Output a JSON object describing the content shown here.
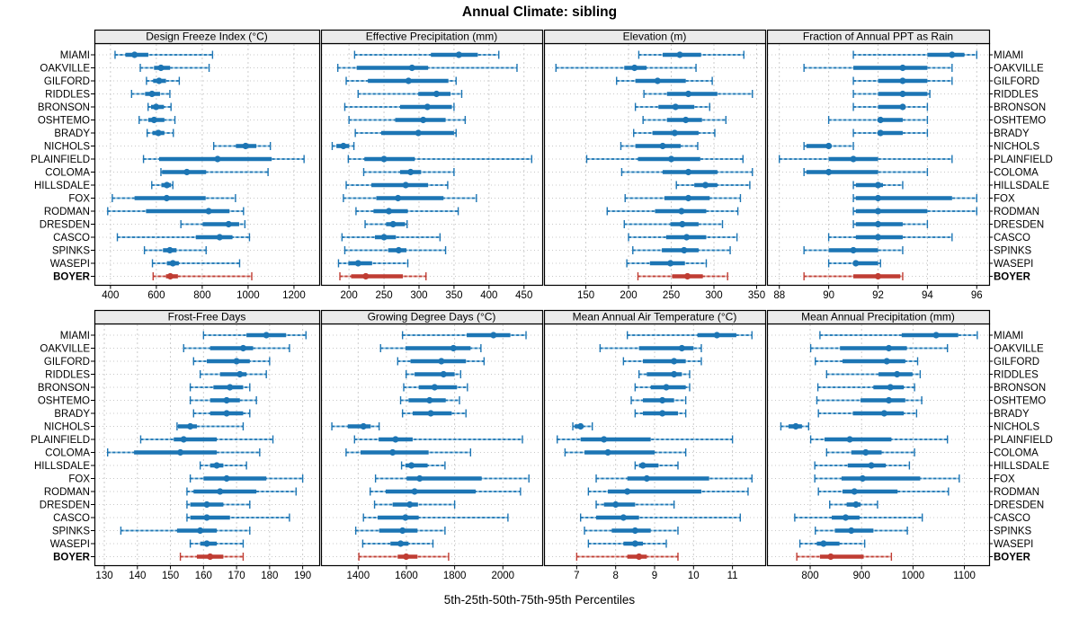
{
  "title": "Annual Climate: sibling",
  "caption": "5th-25th-50th-75th-95th Percentiles",
  "colors": {
    "blue": "#1c75b4",
    "blue_light": "#92c1dd",
    "red": "#c03d33",
    "red_light": "#dd9f97",
    "strip_bg": "#ebebeb",
    "grid": "#cccccc",
    "row_dots": "#c8c8c8",
    "border": "#000000"
  },
  "chart_data": {
    "type": "dotplot-percentiles",
    "percentile_levels": [
      5,
      25,
      50,
      75,
      95
    ],
    "legend_note": "5th-25th-50th-75th-95th Percentiles",
    "highlight_site": "BOYER",
    "sites": [
      "MIAMI",
      "OAKVILLE",
      "GILFORD",
      "RIDDLES",
      "BRONSON",
      "OSHTEMO",
      "BRADY",
      "NICHOLS",
      "PLAINFIELD",
      "COLOMA",
      "HILLSDALE",
      "FOX",
      "RODMAN",
      "DRESDEN",
      "CASCO",
      "SPINKS",
      "WASEPI",
      "BOYER"
    ],
    "panels": [
      {
        "title": "Design Freeze Index (°C)",
        "ticks": [
          400,
          600,
          800,
          1000,
          1200
        ],
        "xlim": [
          330,
          1310
        ],
        "values": [
          [
            420,
            465,
            505,
            565,
            845
          ],
          [
            530,
            590,
            620,
            660,
            830
          ],
          [
            557,
            586,
            612,
            642,
            700
          ],
          [
            492,
            551,
            581,
            616,
            659
          ],
          [
            564,
            577,
            599,
            633,
            664
          ],
          [
            525,
            565,
            590,
            635,
            681
          ],
          [
            560,
            583,
            609,
            635,
            674
          ],
          [
            850,
            947,
            989,
            1036,
            1097
          ],
          [
            544,
            612,
            867,
            1103,
            1244
          ],
          [
            620,
            625,
            733,
            817,
            1087
          ],
          [
            580,
            622,
            646,
            664,
            672
          ],
          [
            408,
            505,
            645,
            815,
            945
          ],
          [
            388,
            555,
            828,
            919,
            980
          ],
          [
            707,
            802,
            915,
            961,
            986
          ],
          [
            430,
            772,
            876,
            932,
            1006
          ],
          [
            548,
            629,
            659,
            688,
            817
          ],
          [
            583,
            646,
            672,
            698,
            963
          ],
          [
            586,
            642,
            661,
            694,
            1016
          ]
        ]
      },
      {
        "title": "Effective Precipitation (mm)",
        "ticks": [
          200,
          250,
          300,
          350,
          400,
          450
        ],
        "xlim": [
          160,
          476
        ],
        "values": [
          [
            208,
            317,
            357,
            384,
            414
          ],
          [
            184,
            211,
            290,
            313,
            440
          ],
          [
            196,
            227,
            285,
            342,
            353
          ],
          [
            213,
            299,
            325,
            345,
            361
          ],
          [
            194,
            273,
            312,
            347,
            350
          ],
          [
            200,
            266,
            306,
            338,
            366
          ],
          [
            209,
            246,
            299,
            350,
            353
          ],
          [
            176,
            182,
            192,
            200,
            207
          ],
          [
            199,
            222,
            250,
            294,
            461
          ],
          [
            221,
            273,
            288,
            303,
            350
          ],
          [
            196,
            232,
            281,
            313,
            341
          ],
          [
            192,
            239,
            270,
            335,
            382
          ],
          [
            210,
            235,
            257,
            284,
            356
          ],
          [
            223,
            253,
            263,
            280,
            283
          ],
          [
            190,
            237,
            250,
            267,
            330
          ],
          [
            194,
            256,
            271,
            282,
            338
          ],
          [
            185,
            199,
            213,
            233,
            284
          ],
          [
            187,
            203,
            224,
            277,
            310
          ]
        ]
      },
      {
        "title": "Elevation (m)",
        "ticks": [
          150,
          200,
          250,
          300,
          350
        ],
        "xlim": [
          101,
          360
        ],
        "values": [
          [
            212,
            240,
            260,
            285,
            335
          ],
          [
            115,
            195,
            207,
            221,
            279
          ],
          [
            186,
            208,
            234,
            267,
            298
          ],
          [
            218,
            245,
            270,
            304,
            345
          ],
          [
            208,
            235,
            255,
            277,
            295
          ],
          [
            217,
            245,
            267,
            286,
            314
          ],
          [
            206,
            228,
            254,
            282,
            301
          ],
          [
            191,
            208,
            240,
            261,
            281
          ],
          [
            151,
            211,
            250,
            284,
            334
          ],
          [
            192,
            240,
            270,
            304,
            345
          ],
          [
            256,
            277,
            290,
            304,
            342
          ],
          [
            196,
            242,
            270,
            295,
            331
          ],
          [
            175,
            231,
            262,
            291,
            328
          ],
          [
            195,
            249,
            263,
            282,
            310
          ],
          [
            200,
            244,
            268,
            291,
            327
          ],
          [
            205,
            239,
            265,
            282,
            319
          ],
          [
            198,
            225,
            249,
            266,
            291
          ],
          [
            211,
            251,
            269,
            287,
            316
          ]
        ]
      },
      {
        "title": "Fraction of Annual PPT as Rain",
        "ticks": [
          88,
          90,
          92,
          94,
          96
        ],
        "xlim": [
          87.5,
          96.5
        ],
        "values": [
          [
            91,
            94,
            95,
            95.5,
            96
          ],
          [
            89,
            91,
            93,
            94,
            95
          ],
          [
            91,
            92,
            93,
            94,
            95
          ],
          [
            91,
            92,
            93,
            94,
            94.1
          ],
          [
            91,
            92,
            93,
            93.1,
            94
          ],
          [
            90,
            92,
            92.1,
            93,
            94
          ],
          [
            91,
            92,
            92.1,
            93,
            94
          ],
          [
            89,
            89.1,
            90,
            90.1,
            91
          ],
          [
            88,
            90,
            91,
            92,
            95
          ],
          [
            89,
            89.1,
            90,
            92,
            94
          ],
          [
            91,
            91.1,
            92,
            92.2,
            93
          ],
          [
            91,
            91.1,
            92,
            95,
            96
          ],
          [
            91,
            91.1,
            92,
            94,
            96
          ],
          [
            91,
            91.1,
            92,
            93,
            94
          ],
          [
            90,
            91.1,
            92,
            93,
            95
          ],
          [
            89,
            90,
            91,
            92,
            93
          ],
          [
            90,
            91,
            91.1,
            92,
            92.1
          ],
          [
            89,
            91,
            92,
            92.9,
            93
          ]
        ]
      },
      {
        "title": "Frost-Free Days",
        "ticks": [
          130,
          140,
          150,
          160,
          170,
          180,
          190
        ],
        "xlim": [
          127,
          195
        ],
        "values": [
          [
            160,
            173,
            179,
            185,
            191
          ],
          [
            154,
            162,
            172,
            175,
            186
          ],
          [
            157,
            161,
            170,
            174,
            180
          ],
          [
            159,
            165,
            171,
            173,
            179
          ],
          [
            156,
            163,
            168,
            172,
            174
          ],
          [
            156,
            162,
            167,
            171,
            176
          ],
          [
            157,
            162,
            167,
            172,
            174
          ],
          [
            152,
            152.3,
            156,
            158,
            172
          ],
          [
            141,
            151,
            154,
            164,
            181
          ],
          [
            131,
            139,
            153,
            164,
            177
          ],
          [
            159,
            162,
            164,
            166,
            173
          ],
          [
            156,
            160,
            167,
            179,
            190
          ],
          [
            155,
            157,
            165,
            176,
            188
          ],
          [
            155,
            156,
            161,
            166,
            174
          ],
          [
            155,
            156,
            161,
            168,
            186
          ],
          [
            135,
            152,
            159,
            164,
            174
          ],
          [
            156,
            159,
            161,
            164,
            172
          ],
          [
            153,
            158,
            162,
            166,
            172
          ]
        ]
      },
      {
        "title": "Growing Degree Days (°C)",
        "ticks": [
          1400,
          1600,
          1800,
          2000
        ],
        "xlim": [
          1246,
          2163
        ],
        "values": [
          [
            1584,
            1850,
            1961,
            2031,
            2096
          ],
          [
            1493,
            1596,
            1795,
            1866,
            1909
          ],
          [
            1564,
            1617,
            1745,
            1847,
            1922
          ],
          [
            1599,
            1634,
            1754,
            1800,
            1825
          ],
          [
            1589,
            1651,
            1717,
            1810,
            1853
          ],
          [
            1576,
            1609,
            1696,
            1763,
            1820
          ],
          [
            1584,
            1626,
            1701,
            1788,
            1847
          ],
          [
            1291,
            1357,
            1422,
            1452,
            1487
          ],
          [
            1385,
            1485,
            1555,
            1626,
            2081
          ],
          [
            1350,
            1410,
            1543,
            1692,
            1866
          ],
          [
            1580,
            1596,
            1621,
            1688,
            1760
          ],
          [
            1472,
            1601,
            1655,
            1912,
            2108
          ],
          [
            1450,
            1514,
            1634,
            1887,
            2073
          ],
          [
            1468,
            1543,
            1614,
            1648,
            1800
          ],
          [
            1422,
            1481,
            1596,
            1651,
            2021
          ],
          [
            1390,
            1487,
            1584,
            1646,
            1760
          ],
          [
            1419,
            1534,
            1576,
            1609,
            1710
          ],
          [
            1403,
            1564,
            1599,
            1646,
            1775
          ]
        ]
      },
      {
        "title": "Mean Annual Air Temperature (°C)",
        "ticks": [
          7,
          8,
          9,
          10,
          11
        ],
        "xlim": [
          6.16,
          11.84
        ],
        "values": [
          [
            8.3,
            10.1,
            10.6,
            11.1,
            11.5
          ],
          [
            7.6,
            8.6,
            9.7,
            10.0,
            10.2
          ],
          [
            8.2,
            8.7,
            9.5,
            9.8,
            10.2
          ],
          [
            8.6,
            8.8,
            9.5,
            9.7,
            9.9
          ],
          [
            8.5,
            8.9,
            9.3,
            9.8,
            9.9
          ],
          [
            8.4,
            8.7,
            9.2,
            9.5,
            9.8
          ],
          [
            8.5,
            8.7,
            9.2,
            9.6,
            9.8
          ],
          [
            6.9,
            6.95,
            7.1,
            7.15,
            7.4
          ],
          [
            6.5,
            7.1,
            7.7,
            8.9,
            11.0
          ],
          [
            6.7,
            7.2,
            7.8,
            9.0,
            9.8
          ],
          [
            8.5,
            8.6,
            8.7,
            9.1,
            9.6
          ],
          [
            7.5,
            8.3,
            8.8,
            10.4,
            11.5
          ],
          [
            7.3,
            7.8,
            8.3,
            10.2,
            11.4
          ],
          [
            7.5,
            7.7,
            8.0,
            8.5,
            9.5
          ],
          [
            7.1,
            7.5,
            8.2,
            8.6,
            11.2
          ],
          [
            7.2,
            7.9,
            8.5,
            8.9,
            9.6
          ],
          [
            7.3,
            8.2,
            8.5,
            8.7,
            9.3
          ],
          [
            7.0,
            8.3,
            8.6,
            8.8,
            9.6
          ]
        ]
      },
      {
        "title": "Mean Annual Precipitation (mm)",
        "ticks": [
          800,
          900,
          1000,
          1100
        ],
        "xlim": [
          716,
          1148
        ],
        "values": [
          [
            819,
            978,
            1045,
            1088,
            1125
          ],
          [
            801,
            858,
            953,
            988,
            1067
          ],
          [
            810,
            863,
            949,
            985,
            1009
          ],
          [
            832,
            933,
            969,
            999,
            1014
          ],
          [
            815,
            923,
            956,
            982,
            1003
          ],
          [
            813,
            898,
            953,
            985,
            1017
          ],
          [
            816,
            883,
            944,
            982,
            1007
          ],
          [
            743,
            758,
            772,
            784,
            797
          ],
          [
            801,
            828,
            877,
            958,
            1067
          ],
          [
            832,
            880,
            908,
            939,
            1003
          ],
          [
            809,
            873,
            919,
            947,
            993
          ],
          [
            809,
            861,
            902,
            1014,
            1090
          ],
          [
            816,
            863,
            886,
            970,
            1069
          ],
          [
            838,
            871,
            889,
            898,
            931
          ],
          [
            770,
            842,
            869,
            896,
            1018
          ],
          [
            810,
            848,
            880,
            923,
            989
          ],
          [
            780,
            813,
            826,
            857,
            906
          ],
          [
            774,
            819,
            840,
            904,
            958
          ]
        ]
      }
    ]
  }
}
